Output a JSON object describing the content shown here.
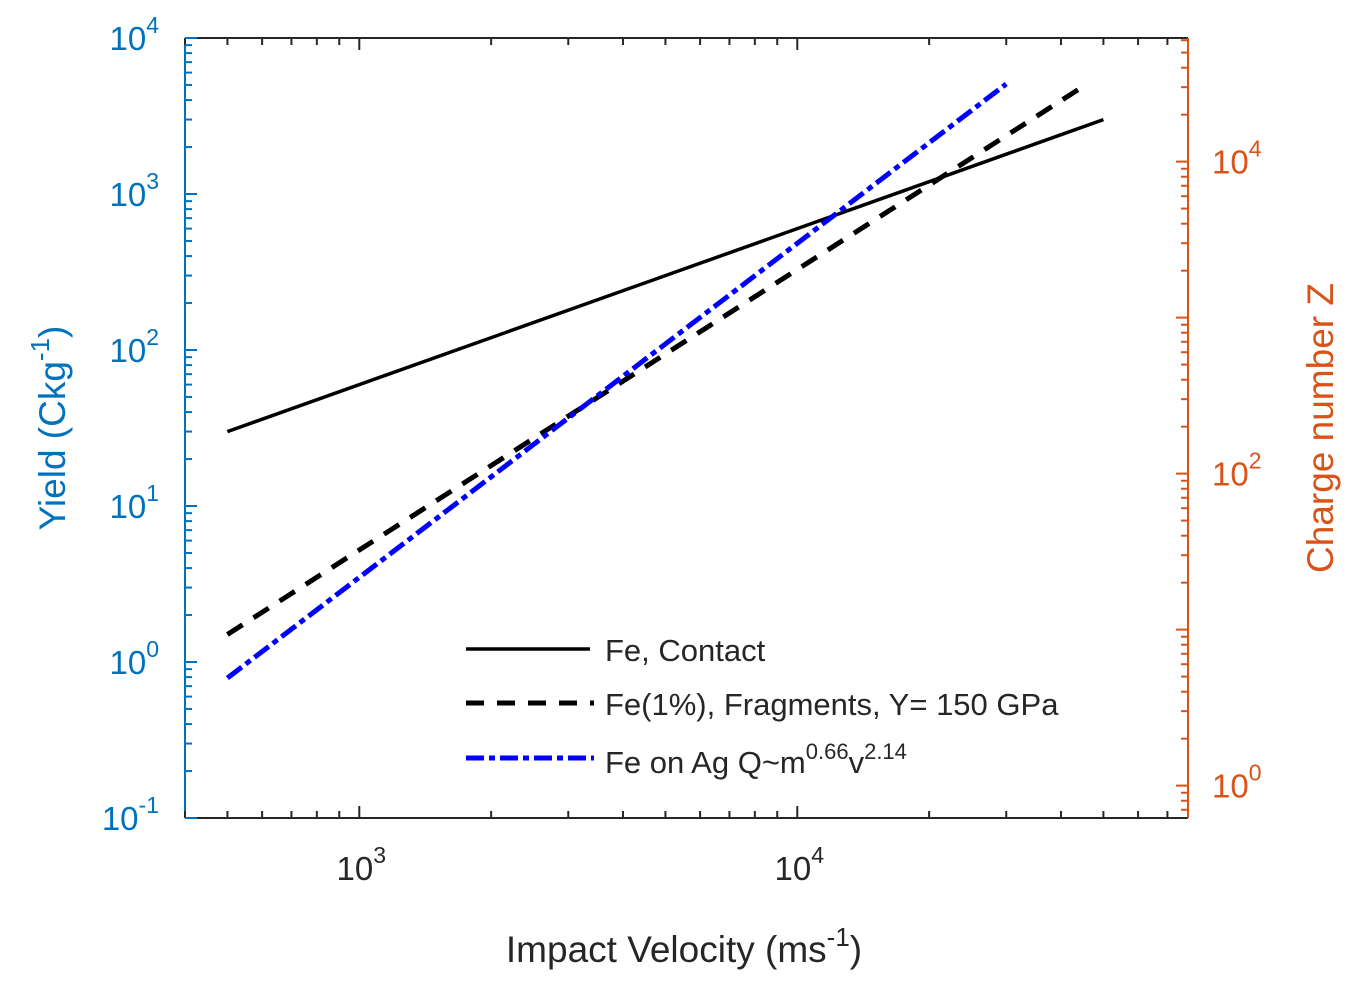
{
  "chart_data": {
    "type": "line",
    "title": "",
    "xlabel": "Impact Velocity (ms",
    "xlabel_sup": "-1",
    "xlabel_tail": ")",
    "ylabel_left": "Yield (Ckg",
    "ylabel_left_sup": "-1",
    "ylabel_left_tail": ")",
    "ylabel_right": "Charge number Z",
    "xscale": "log",
    "yscale_left": "log",
    "yscale_right": "log",
    "xlim": [
      400,
      78000
    ],
    "ylim_left": [
      0.1,
      10000
    ],
    "ylim_right": [
      0.62,
      62000
    ],
    "xticks": [
      {
        "base": "10",
        "exp": "3",
        "value": 1000
      },
      {
        "base": "10",
        "exp": "4",
        "value": 10000
      }
    ],
    "yticks_left": [
      {
        "base": "10",
        "exp": "-1",
        "value": 0.1
      },
      {
        "base": "10",
        "exp": "0",
        "value": 1
      },
      {
        "base": "10",
        "exp": "1",
        "value": 10
      },
      {
        "base": "10",
        "exp": "2",
        "value": 100
      },
      {
        "base": "10",
        "exp": "3",
        "value": 1000
      },
      {
        "base": "10",
        "exp": "4",
        "value": 10000
      }
    ],
    "yticks_right": [
      {
        "base": "10",
        "exp": "0",
        "value": 1
      },
      {
        "base": "10",
        "exp": "2",
        "value": 100
      },
      {
        "base": "10",
        "exp": "4",
        "value": 10000
      }
    ],
    "grid": false,
    "legend_position": "bottom-right",
    "colors": {
      "left_axis": "#0072BD",
      "right_axis": "#D95319",
      "x_axis": "#262626"
    },
    "series": [
      {
        "name": "Fe, Contact",
        "legend_label": "Fe, Contact",
        "style": "solid",
        "color": "#000000",
        "x": [
          500,
          50000
        ],
        "y": [
          30,
          3000
        ]
      },
      {
        "name": "Fe(1%), Fragments, Y= 150 GPa",
        "legend_label": "Fe(1%), Fragments, Y= 150 GPa",
        "style": "dashed",
        "color": "#000000",
        "x": [
          500,
          46000
        ],
        "y": [
          1.5,
          5100
        ]
      },
      {
        "name": "Fe on Ag Q~m^0.66 v^2.14",
        "legend_label": "Fe on Ag Q~m",
        "legend_sup1": "0.66",
        "legend_mid": "v",
        "legend_sup2": "2.14",
        "style": "dashdot",
        "color": "#0000FF",
        "x": [
          500,
          30000
        ],
        "y": [
          0.79,
          5070
        ]
      }
    ]
  }
}
